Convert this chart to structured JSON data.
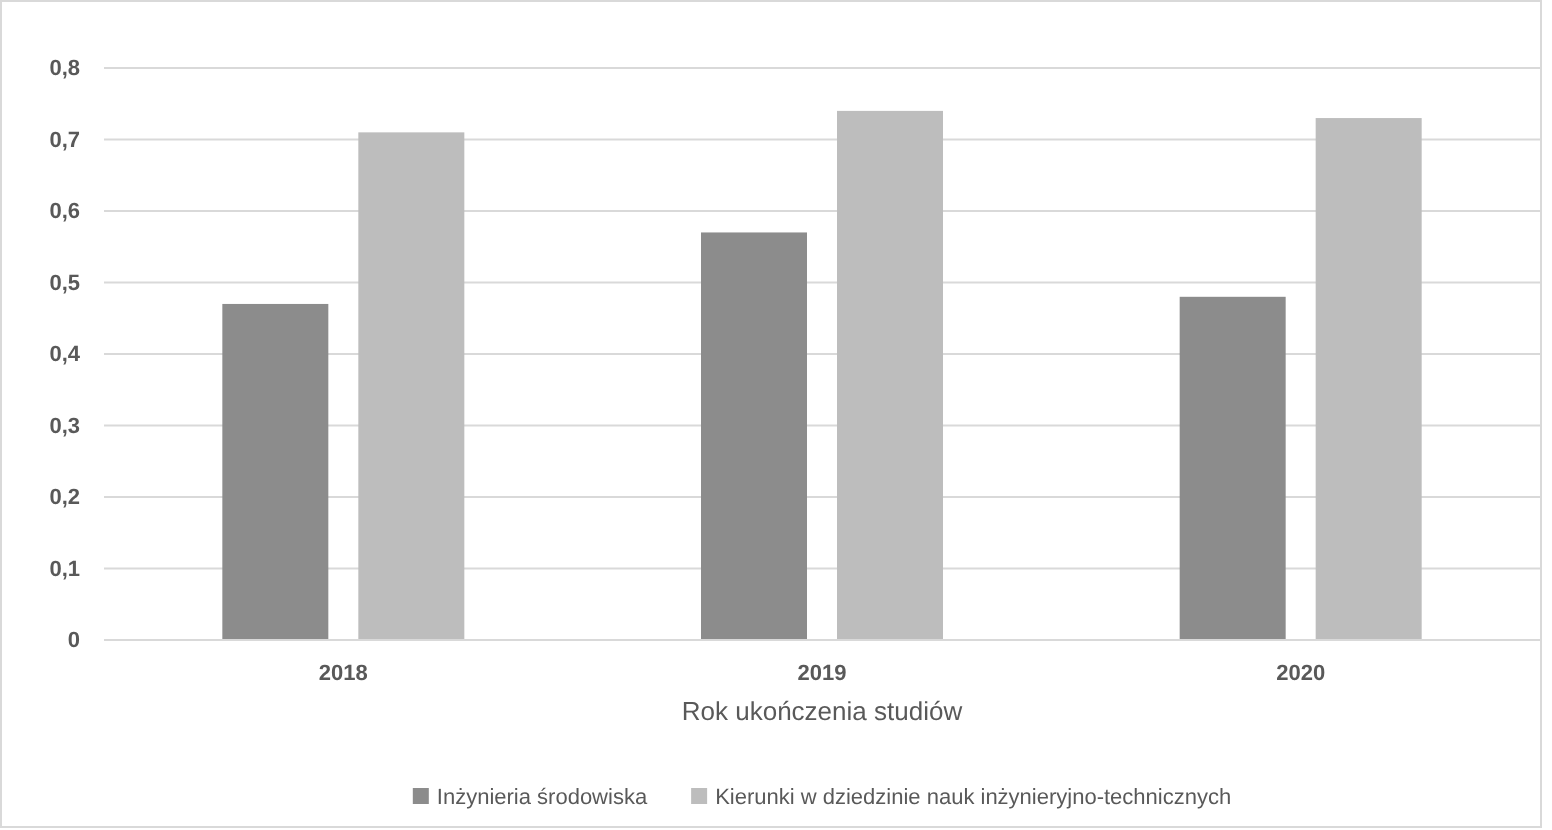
{
  "chart_data": {
    "type": "bar",
    "xlabel": "Rok ukończenia studiów",
    "categories": [
      "2018",
      "2019",
      "2020"
    ],
    "series": [
      {
        "name": "Inżynieria środowiska",
        "color": "#8c8c8c",
        "values": [
          0.47,
          0.57,
          0.48
        ]
      },
      {
        "name": "Kierunki w dziedzinie nauk inżynieryjno-technicznych",
        "color": "#bdbdbd",
        "values": [
          0.71,
          0.74,
          0.73
        ]
      }
    ],
    "ylim": [
      0,
      0.8
    ],
    "yticks": [
      0,
      {
        "value": 0.1,
        "label": "0,1"
      },
      {
        "value": 0.2,
        "label": "0,2"
      },
      {
        "value": 0.3,
        "label": "0,3"
      },
      {
        "value": 0.4,
        "label": "0,4"
      },
      {
        "value": 0.5,
        "label": "0,5"
      },
      {
        "value": 0.6,
        "label": "0,6"
      },
      {
        "value": 0.7,
        "label": "0,7"
      },
      {
        "value": 0.8,
        "label": "0,8"
      }
    ],
    "grid": "y",
    "legend": "bottom"
  }
}
